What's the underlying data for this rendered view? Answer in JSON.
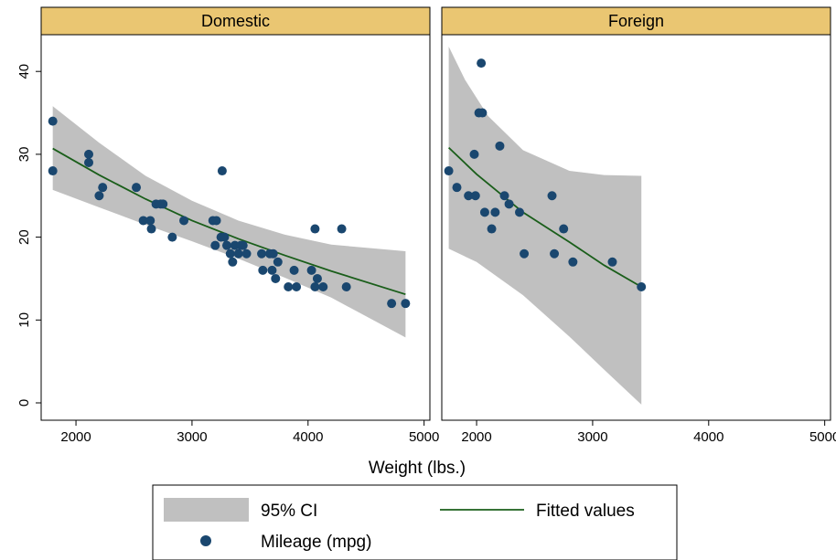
{
  "chart_data": {
    "type": "scatter",
    "xlabel": "Weight (lbs.)",
    "ylabel": "",
    "x_ticks": [
      2000,
      3000,
      4000,
      5000
    ],
    "y_ticks": [
      0,
      10,
      20,
      30,
      40
    ],
    "xlim": [
      1700,
      5050
    ],
    "ylim": [
      -1,
      45
    ],
    "grid": false,
    "legend": {
      "placement": "bottom",
      "entries": [
        {
          "key": "ci",
          "label": "95% CI",
          "color": "#c0c0c0"
        },
        {
          "key": "fit",
          "label": "Fitted values",
          "color": "#1a5e1a"
        },
        {
          "key": "points",
          "label": "Mileage (mpg)",
          "color": "#1a476f"
        }
      ]
    },
    "panels": [
      {
        "title": "Domestic",
        "scatter": [
          [
            1800,
            34
          ],
          [
            1800,
            28
          ],
          [
            2110,
            30
          ],
          [
            2110,
            29
          ],
          [
            2200,
            25
          ],
          [
            2230,
            26
          ],
          [
            2520,
            26
          ],
          [
            2580,
            22
          ],
          [
            2640,
            22
          ],
          [
            2650,
            21
          ],
          [
            2690,
            24
          ],
          [
            2730,
            24
          ],
          [
            2750,
            24
          ],
          [
            2830,
            20
          ],
          [
            2930,
            22
          ],
          [
            3180,
            22
          ],
          [
            3210,
            22
          ],
          [
            3200,
            19
          ],
          [
            3250,
            20
          ],
          [
            3260,
            28
          ],
          [
            3280,
            20
          ],
          [
            3300,
            19
          ],
          [
            3330,
            18
          ],
          [
            3350,
            17
          ],
          [
            3370,
            19
          ],
          [
            3400,
            18
          ],
          [
            3420,
            19
          ],
          [
            3440,
            19
          ],
          [
            3470,
            18
          ],
          [
            3600,
            18
          ],
          [
            3610,
            16
          ],
          [
            3670,
            18
          ],
          [
            3690,
            16
          ],
          [
            3700,
            18
          ],
          [
            3720,
            15
          ],
          [
            3740,
            17
          ],
          [
            3830,
            14
          ],
          [
            3880,
            16
          ],
          [
            3900,
            14
          ],
          [
            4030,
            16
          ],
          [
            4060,
            21
          ],
          [
            4060,
            14
          ],
          [
            4080,
            15
          ],
          [
            4130,
            14
          ],
          [
            4290,
            21
          ],
          [
            4330,
            14
          ],
          [
            4720,
            12
          ],
          [
            4840,
            12
          ]
        ],
        "fit": [
          [
            1800,
            30.7
          ],
          [
            2200,
            27.5
          ],
          [
            2600,
            24.6
          ],
          [
            3000,
            22.0
          ],
          [
            3400,
            19.8
          ],
          [
            3800,
            17.8
          ],
          [
            4200,
            15.9
          ],
          [
            4840,
            13.1
          ]
        ],
        "ci_upper": [
          [
            1800,
            35.8
          ],
          [
            2200,
            31.4
          ],
          [
            2600,
            27.4
          ],
          [
            3000,
            24.4
          ],
          [
            3400,
            22.0
          ],
          [
            3800,
            20.3
          ],
          [
            4200,
            19.1
          ],
          [
            4840,
            18.3
          ]
        ],
        "ci_lower": [
          [
            1800,
            25.7
          ],
          [
            2200,
            23.6
          ],
          [
            2600,
            21.5
          ],
          [
            3000,
            19.5
          ],
          [
            3400,
            17.4
          ],
          [
            3800,
            15.1
          ],
          [
            4200,
            12.7
          ],
          [
            4840,
            7.9
          ]
        ]
      },
      {
        "title": "Foreign",
        "scatter": [
          [
            1760,
            28
          ],
          [
            1830,
            26
          ],
          [
            1930,
            25
          ],
          [
            1980,
            30
          ],
          [
            1990,
            25
          ],
          [
            2020,
            35
          ],
          [
            2040,
            41
          ],
          [
            2050,
            35
          ],
          [
            2070,
            23
          ],
          [
            2130,
            21
          ],
          [
            2160,
            23
          ],
          [
            2200,
            31
          ],
          [
            2240,
            25
          ],
          [
            2280,
            24
          ],
          [
            2370,
            23
          ],
          [
            2410,
            18
          ],
          [
            2650,
            25
          ],
          [
            2670,
            18
          ],
          [
            2750,
            21
          ],
          [
            2830,
            17
          ],
          [
            3170,
            17
          ],
          [
            3420,
            14
          ]
        ],
        "fit": [
          [
            1760,
            30.8
          ],
          [
            2000,
            27.6
          ],
          [
            2400,
            23.0
          ],
          [
            2800,
            19.4
          ],
          [
            3100,
            16.6
          ],
          [
            3420,
            14.0
          ]
        ],
        "ci_upper": [
          [
            1760,
            43.0
          ],
          [
            1900,
            39.0
          ],
          [
            2100,
            34.6
          ],
          [
            2400,
            30.5
          ],
          [
            2800,
            28.0
          ],
          [
            3100,
            27.5
          ],
          [
            3420,
            27.4
          ]
        ],
        "ci_lower": [
          [
            1760,
            18.6
          ],
          [
            2000,
            17.0
          ],
          [
            2400,
            13.0
          ],
          [
            2800,
            8.0
          ],
          [
            3100,
            4.0
          ],
          [
            3420,
            -0.2
          ]
        ]
      }
    ]
  }
}
